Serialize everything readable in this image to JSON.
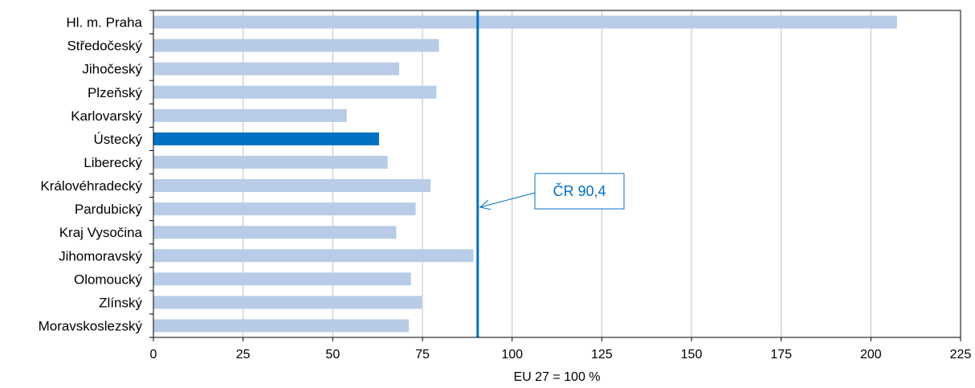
{
  "chart_data": {
    "type": "bar",
    "orientation": "horizontal",
    "categories": [
      "Hl. m. Praha",
      "Středočeský",
      "Jihočeský",
      "Plzeňský",
      "Karlovarský",
      "Ústecký",
      "Liberecký",
      "Královéhradecký",
      "Pardubický",
      "Kraj Vysočina",
      "Jihomoravský",
      "Olomoucký",
      "Zlínský",
      "Moravskoslezský"
    ],
    "values": [
      207.3,
      79.6,
      68.5,
      78.9,
      53.9,
      62.9,
      65.3,
      77.3,
      73.1,
      67.7,
      89.2,
      71.8,
      74.8,
      71.2
    ],
    "highlight_index": 5,
    "xlabel": "EU 27 = 100 %",
    "ylabel": "",
    "xlim": [
      0,
      225
    ],
    "xticks": [
      0,
      25,
      50,
      75,
      100,
      125,
      150,
      175,
      200,
      225
    ],
    "grid": "vertical",
    "reference_line": {
      "value": 90.4,
      "label": "ČR 90,4"
    },
    "colors": {
      "bar": "#b8cce8",
      "highlight": "#0070c0",
      "reference": "#0070c0",
      "grid": "#c0c0c0",
      "axis": "#000000"
    }
  }
}
